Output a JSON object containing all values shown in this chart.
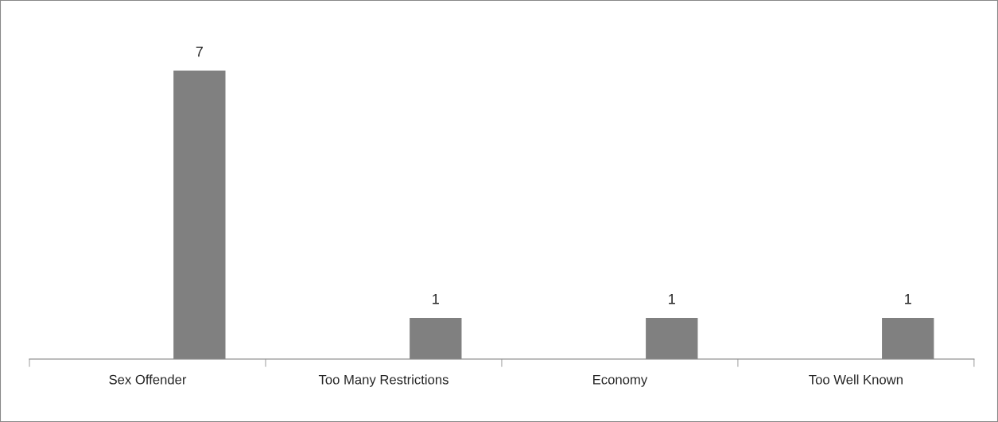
{
  "chart_data": {
    "type": "bar",
    "categories": [
      "Sex Offender",
      "Too Many Restrictions",
      "Economy",
      "Too Well Known"
    ],
    "values": [
      7,
      1,
      1,
      1
    ],
    "color": "#808080",
    "data_labels": true,
    "grid": false,
    "legend": false
  }
}
